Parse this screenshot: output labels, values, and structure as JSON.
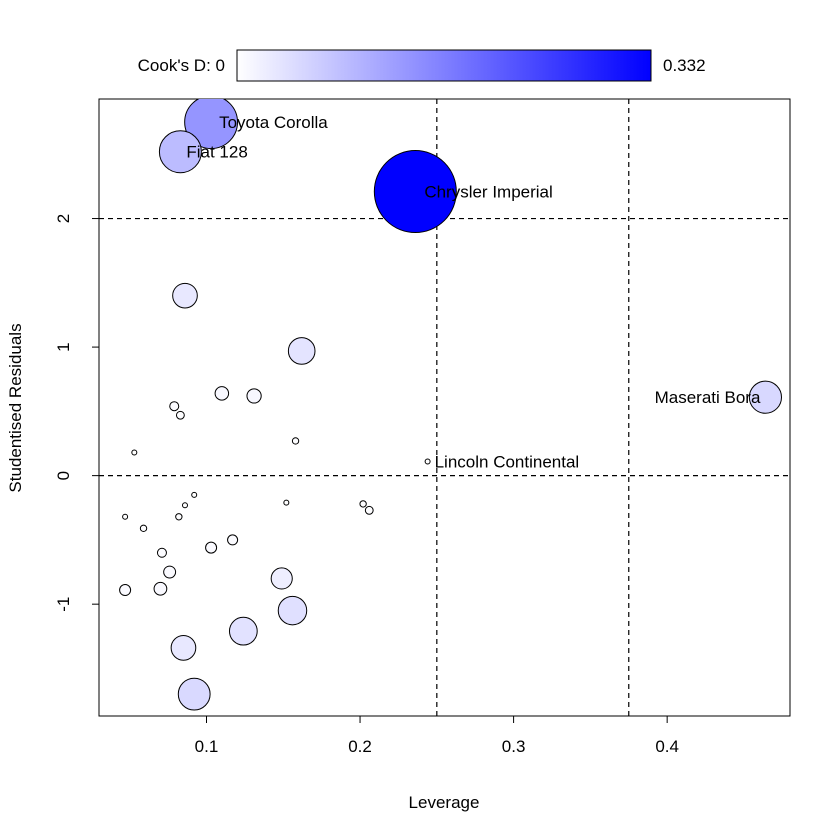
{
  "chart_data": {
    "type": "scatter",
    "title": "",
    "xlabel": "Leverage",
    "ylabel": "Studentised Residuals",
    "xlim": [
      0.03,
      0.48
    ],
    "ylim": [
      -1.87,
      2.93
    ],
    "xticks": [
      0.1,
      0.2,
      0.3,
      0.4
    ],
    "xtick_labels": [
      "0.1",
      "0.2",
      "0.3",
      "0.4"
    ],
    "yticks": [
      -1,
      0,
      1,
      2
    ],
    "ytick_labels": [
      "-1",
      "0",
      "1",
      "2"
    ],
    "reference_lines": {
      "vertical": [
        0.25,
        0.375
      ],
      "horizontal": [
        0,
        2
      ]
    },
    "colorbar": {
      "label": "Cook's D: 0",
      "max_label": "0.332",
      "min": 0,
      "max": 0.332,
      "color_low": "#ffffff",
      "color_high": "#0000ff"
    },
    "points": [
      {
        "x": 0.103,
        "y": 2.75,
        "d": 0.138,
        "label": "Toyota Corolla"
      },
      {
        "x": 0.083,
        "y": 2.52,
        "d": 0.087,
        "label": "Fiat 128"
      },
      {
        "x": 0.236,
        "y": 2.21,
        "d": 0.332,
        "label": "Chrysler Imperial"
      },
      {
        "x": 0.464,
        "y": 0.61,
        "d": 0.051,
        "label": "Maserati Bora"
      },
      {
        "x": 0.244,
        "y": 0.11,
        "d": 0.001,
        "label": "Lincoln Continental"
      },
      {
        "x": 0.086,
        "y": 1.4,
        "d": 0.03
      },
      {
        "x": 0.162,
        "y": 0.97,
        "d": 0.035
      },
      {
        "x": 0.11,
        "y": 0.64,
        "d": 0.009
      },
      {
        "x": 0.131,
        "y": 0.62,
        "d": 0.01
      },
      {
        "x": 0.079,
        "y": 0.54,
        "d": 0.004
      },
      {
        "x": 0.083,
        "y": 0.47,
        "d": 0.003
      },
      {
        "x": 0.158,
        "y": 0.27,
        "d": 0.002
      },
      {
        "x": 0.053,
        "y": 0.18,
        "d": 0.0003
      },
      {
        "x": 0.092,
        "y": -0.15,
        "d": 0.0004
      },
      {
        "x": 0.086,
        "y": -0.23,
        "d": 0.001
      },
      {
        "x": 0.152,
        "y": -0.21,
        "d": 0.001
      },
      {
        "x": 0.202,
        "y": -0.22,
        "d": 0.002
      },
      {
        "x": 0.206,
        "y": -0.27,
        "d": 0.003
      },
      {
        "x": 0.047,
        "y": -0.32,
        "d": 0.001
      },
      {
        "x": 0.082,
        "y": -0.32,
        "d": 0.002
      },
      {
        "x": 0.059,
        "y": -0.41,
        "d": 0.002
      },
      {
        "x": 0.117,
        "y": -0.5,
        "d": 0.005
      },
      {
        "x": 0.103,
        "y": -0.56,
        "d": 0.006
      },
      {
        "x": 0.071,
        "y": -0.6,
        "d": 0.004
      },
      {
        "x": 0.076,
        "y": -0.75,
        "d": 0.007
      },
      {
        "x": 0.149,
        "y": -0.8,
        "d": 0.022
      },
      {
        "x": 0.047,
        "y": -0.89,
        "d": 0.006
      },
      {
        "x": 0.07,
        "y": -0.88,
        "d": 0.008
      },
      {
        "x": 0.156,
        "y": -1.05,
        "d": 0.04
      },
      {
        "x": 0.124,
        "y": -1.21,
        "d": 0.038
      },
      {
        "x": 0.085,
        "y": -1.34,
        "d": 0.03
      },
      {
        "x": 0.092,
        "y": -1.7,
        "d": 0.05
      }
    ]
  }
}
